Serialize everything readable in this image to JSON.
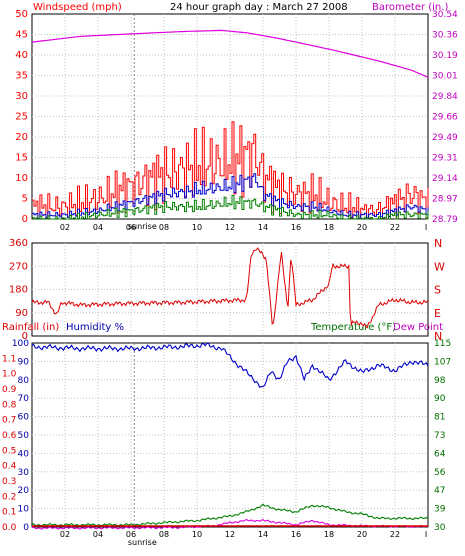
{
  "header": {
    "left_title": "Windspeed (mph)",
    "center_title": "24 hour graph day : March 27 2008",
    "right_title": "Barometer (in.)"
  },
  "lower_header": {
    "rainfall": "Rainfall (in)",
    "humidity": "Humidity %",
    "temperature": "Temperature (°F)",
    "dewpoint": "Dew Point"
  },
  "colors": {
    "wind_gust": "#ff0000",
    "wind_avg": "#0000cc",
    "wind_low": "#008000",
    "barometer": "#e000e0",
    "direction": "#dd0000",
    "humidity": "#0000cc",
    "temperature": "#008000",
    "dewpoint": "#e000e0",
    "rain": "#dd0000",
    "grid": "#c0c0c0",
    "left_axis": "#ff0000",
    "right_axis": "#c000c0",
    "humidity_axis": "#0000aa",
    "temp_axis": "#007000"
  },
  "chart_data": [
    {
      "type": "line",
      "name": "wind-barometer",
      "x_ticks": [
        "02",
        "04",
        "06",
        "08",
        "10",
        "12",
        "14",
        "16",
        "18",
        "20",
        "22"
      ],
      "x_end_label": "I",
      "sunrise_label": "sunrise",
      "sunrise_hour": 6.2,
      "left_ticks": [
        "0",
        "5",
        "10",
        "15",
        "20",
        "25",
        "30",
        "35",
        "40",
        "45",
        "50"
      ],
      "left_range": [
        0,
        50
      ],
      "right_ticks": [
        "28.79",
        "28.97",
        "29.14",
        "29.31",
        "29.49",
        "29.66",
        "29.84",
        "30.01",
        "30.19",
        "30.36",
        "30.54"
      ],
      "right_range": [
        28.79,
        30.54
      ],
      "barometer": {
        "hours": [
          0,
          3,
          6,
          9,
          11.5,
          13,
          15,
          18,
          21,
          23,
          24
        ],
        "values": [
          30.3,
          30.35,
          30.37,
          30.39,
          30.4,
          30.38,
          30.33,
          30.24,
          30.14,
          30.06,
          30.0
        ]
      },
      "wind_envelope": {
        "hours": [
          0,
          2,
          4,
          6,
          8,
          10,
          12,
          13.5,
          14,
          15,
          16,
          17,
          18,
          19,
          20,
          21,
          22,
          23,
          24
        ],
        "gust": [
          3,
          3,
          5,
          8,
          11,
          13,
          14,
          16,
          10,
          7,
          6,
          6,
          4,
          3,
          2,
          2,
          4,
          6,
          4
        ],
        "avg": [
          1,
          1,
          2,
          4,
          6,
          7,
          8,
          10,
          6,
          4,
          3,
          3,
          2,
          1,
          1,
          1,
          2,
          3,
          2
        ],
        "low": [
          0,
          0,
          1,
          2,
          3,
          3,
          4,
          4,
          3,
          2,
          1,
          1,
          1,
          0,
          0,
          0,
          1,
          1,
          1
        ]
      }
    },
    {
      "type": "line",
      "name": "wind-direction",
      "left_ticks": [
        "0",
        "90",
        "180",
        "270",
        "360"
      ],
      "left_range": [
        0,
        360
      ],
      "right_ticks": [
        "N",
        "E",
        "S",
        "W",
        "N"
      ],
      "hours": [
        0,
        1,
        1.5,
        1.8,
        3,
        5,
        7,
        9,
        11,
        13,
        13.3,
        13.6,
        14.2,
        14.6,
        15.1,
        15.5,
        15.7,
        16,
        17,
        18,
        18.2,
        19.2,
        19.3,
        20,
        20.3,
        21,
        22,
        23,
        24
      ],
      "values": [
        130,
        130,
        80,
        130,
        120,
        125,
        128,
        130,
        135,
        140,
        320,
        340,
        300,
        20,
        330,
        100,
        320,
        120,
        140,
        200,
        270,
        270,
        50,
        50,
        30,
        120,
        140,
        130,
        130
      ]
    },
    {
      "type": "line",
      "name": "humidity-temperature",
      "rain_ticks": [
        "0.0",
        "0.1",
        "0.2",
        "0.3",
        "0.4",
        "0.5",
        "0.6",
        "0.7",
        "0.8",
        "0.9",
        "1.0",
        "1.1"
      ],
      "rain_range": [
        0,
        1.2
      ],
      "humidity_ticks": [
        "0",
        "10",
        "20",
        "30",
        "40",
        "50",
        "60",
        "70",
        "80",
        "90",
        "100"
      ],
      "humidity_range": [
        0,
        100
      ],
      "temp_ticks": [
        "30",
        "39",
        "47",
        "56",
        "64",
        "73",
        "81",
        "90",
        "98",
        "107",
        "115"
      ],
      "temp_range": [
        30,
        115
      ],
      "humidity": {
        "hours": [
          0,
          3,
          6,
          9,
          10.5,
          11.5,
          12.5,
          13.5,
          14,
          14.5,
          15,
          15.5,
          16,
          16.5,
          17,
          18,
          19,
          20,
          21,
          22,
          23,
          24
        ],
        "values": [
          98,
          97,
          97,
          98,
          99,
          97,
          88,
          80,
          75,
          85,
          80,
          90,
          93,
          80,
          88,
          80,
          90,
          84,
          88,
          85,
          90,
          88
        ]
      },
      "temperature": {
        "hours": [
          0,
          3,
          6,
          8,
          10,
          12,
          13,
          14,
          15,
          16,
          17,
          18,
          19,
          20,
          21,
          22,
          23,
          24
        ],
        "values": [
          31,
          31,
          31,
          32,
          33,
          35,
          37,
          40,
          38,
          37,
          40,
          39,
          37,
          36,
          34,
          34,
          34,
          34
        ]
      },
      "dewpoint": {
        "hours": [
          0,
          3,
          6,
          9,
          11,
          12,
          13,
          14,
          15,
          16,
          17,
          18,
          20,
          22,
          24
        ],
        "values": [
          29.5,
          29.5,
          29.6,
          29.8,
          30.5,
          32,
          33,
          33,
          32,
          31,
          33,
          31,
          30.5,
          30.3,
          30.2
        ]
      },
      "rain": {
        "hours": [
          0,
          24
        ],
        "values": [
          0.0,
          0.0
        ]
      }
    }
  ]
}
